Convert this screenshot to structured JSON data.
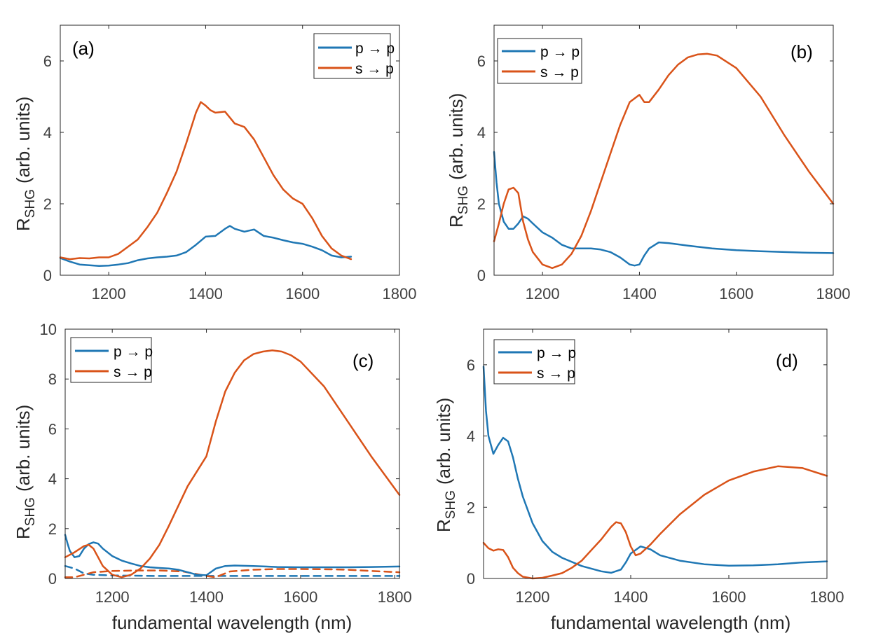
{
  "colors": {
    "p_to_p": "#1f77b4",
    "s_to_p": "#d95319",
    "axis": "#262626",
    "tick_text": "#404040"
  },
  "chart_data": [
    {
      "type": "line",
      "panel_label": "(a)",
      "ylabel_main": "R",
      "ylabel_sub": "SHG",
      "ylabel_units": "(arb. units)",
      "xlabel": "",
      "xlim": [
        1100,
        1800
      ],
      "ylim": [
        0,
        7
      ],
      "xticks": [
        1200,
        1400,
        1600,
        1800
      ],
      "yticks": [
        0,
        2,
        4,
        6
      ],
      "legend": {
        "placement": "top-right",
        "entries": [
          "p → p",
          "s → p"
        ]
      },
      "series": [
        {
          "name": "p → p",
          "color_key": "p_to_p",
          "dash": false,
          "x": [
            1100,
            1120,
            1140,
            1160,
            1180,
            1200,
            1220,
            1240,
            1260,
            1280,
            1300,
            1320,
            1340,
            1360,
            1380,
            1400,
            1420,
            1440,
            1450,
            1460,
            1480,
            1500,
            1520,
            1540,
            1560,
            1580,
            1600,
            1620,
            1640,
            1660,
            1680,
            1700
          ],
          "y": [
            0.48,
            0.38,
            0.3,
            0.28,
            0.26,
            0.27,
            0.3,
            0.34,
            0.42,
            0.47,
            0.5,
            0.52,
            0.55,
            0.65,
            0.85,
            1.08,
            1.1,
            1.3,
            1.38,
            1.3,
            1.22,
            1.28,
            1.1,
            1.05,
            0.98,
            0.92,
            0.88,
            0.8,
            0.7,
            0.55,
            0.5,
            0.52
          ]
        },
        {
          "name": "s → p",
          "color_key": "s_to_p",
          "dash": false,
          "x": [
            1100,
            1120,
            1140,
            1160,
            1180,
            1200,
            1220,
            1240,
            1260,
            1280,
            1300,
            1320,
            1340,
            1360,
            1380,
            1390,
            1400,
            1410,
            1420,
            1440,
            1460,
            1480,
            1500,
            1520,
            1540,
            1560,
            1580,
            1600,
            1620,
            1640,
            1660,
            1680,
            1700
          ],
          "y": [
            0.5,
            0.45,
            0.48,
            0.47,
            0.5,
            0.5,
            0.6,
            0.8,
            1.0,
            1.35,
            1.75,
            2.3,
            2.9,
            3.7,
            4.55,
            4.85,
            4.75,
            4.62,
            4.55,
            4.58,
            4.25,
            4.15,
            3.8,
            3.3,
            2.8,
            2.4,
            2.15,
            2.0,
            1.6,
            1.1,
            0.75,
            0.55,
            0.45
          ]
        }
      ]
    },
    {
      "type": "line",
      "panel_label": "(b)",
      "ylabel_main": "R",
      "ylabel_sub": "SHG",
      "ylabel_units": "(arb. units)",
      "xlabel": "",
      "xlim": [
        1100,
        1800
      ],
      "ylim": [
        0,
        7
      ],
      "xticks": [
        1200,
        1400,
        1600,
        1800
      ],
      "yticks": [
        0,
        2,
        4,
        6
      ],
      "legend": {
        "placement": "top-left",
        "entries": [
          "p → p",
          "s → p"
        ]
      },
      "series": [
        {
          "name": "p → p",
          "color_key": "p_to_p",
          "dash": false,
          "x": [
            1100,
            1105,
            1110,
            1120,
            1130,
            1140,
            1150,
            1160,
            1170,
            1180,
            1200,
            1220,
            1240,
            1260,
            1280,
            1300,
            1320,
            1340,
            1360,
            1380,
            1390,
            1400,
            1410,
            1420,
            1440,
            1460,
            1500,
            1550,
            1600,
            1650,
            1700,
            1750,
            1800
          ],
          "y": [
            3.45,
            2.6,
            2.0,
            1.5,
            1.3,
            1.3,
            1.45,
            1.65,
            1.58,
            1.45,
            1.2,
            1.05,
            0.85,
            0.75,
            0.75,
            0.75,
            0.72,
            0.65,
            0.5,
            0.3,
            0.27,
            0.3,
            0.55,
            0.75,
            0.92,
            0.9,
            0.83,
            0.75,
            0.7,
            0.67,
            0.65,
            0.63,
            0.62
          ]
        },
        {
          "name": "s → p",
          "color_key": "s_to_p",
          "dash": false,
          "x": [
            1100,
            1110,
            1120,
            1130,
            1140,
            1150,
            1160,
            1170,
            1180,
            1200,
            1220,
            1240,
            1260,
            1280,
            1300,
            1320,
            1340,
            1360,
            1380,
            1400,
            1410,
            1420,
            1440,
            1460,
            1480,
            1500,
            1520,
            1540,
            1560,
            1600,
            1650,
            1700,
            1750,
            1800
          ],
          "y": [
            0.95,
            1.45,
            2.0,
            2.4,
            2.45,
            2.3,
            1.5,
            1.0,
            0.65,
            0.3,
            0.2,
            0.3,
            0.6,
            1.1,
            1.8,
            2.6,
            3.4,
            4.2,
            4.85,
            5.05,
            4.85,
            4.85,
            5.2,
            5.6,
            5.9,
            6.1,
            6.18,
            6.2,
            6.15,
            5.8,
            5.0,
            3.9,
            2.9,
            2.0
          ]
        }
      ]
    },
    {
      "type": "line",
      "panel_label": "(c)",
      "ylabel_main": "R",
      "ylabel_sub": "SHG",
      "ylabel_units": "(arb. units)",
      "xlabel": "fundamental wavelength (nm)",
      "xlim": [
        1100,
        1810
      ],
      "ylim": [
        0,
        10
      ],
      "xticks": [
        1200,
        1400,
        1600,
        1800
      ],
      "yticks": [
        0,
        2,
        4,
        6,
        8,
        10
      ],
      "legend": {
        "placement": "top-left",
        "entries": [
          "p → p",
          "s → p"
        ]
      },
      "series": [
        {
          "name": "p → p",
          "color_key": "p_to_p",
          "dash": false,
          "x": [
            1100,
            1105,
            1110,
            1120,
            1130,
            1140,
            1150,
            1160,
            1170,
            1180,
            1200,
            1220,
            1240,
            1260,
            1280,
            1300,
            1320,
            1340,
            1360,
            1380,
            1400,
            1420,
            1440,
            1460,
            1500,
            1550,
            1600,
            1650,
            1700,
            1750,
            1810
          ],
          "y": [
            1.75,
            1.4,
            1.1,
            0.85,
            0.9,
            1.2,
            1.38,
            1.45,
            1.4,
            1.2,
            0.9,
            0.72,
            0.6,
            0.5,
            0.45,
            0.42,
            0.4,
            0.35,
            0.25,
            0.15,
            0.13,
            0.4,
            0.5,
            0.52,
            0.5,
            0.46,
            0.45,
            0.45,
            0.45,
            0.46,
            0.48
          ]
        },
        {
          "name": "s → p",
          "color_key": "s_to_p",
          "dash": false,
          "x": [
            1100,
            1120,
            1140,
            1150,
            1160,
            1170,
            1180,
            1200,
            1220,
            1240,
            1260,
            1280,
            1300,
            1320,
            1340,
            1360,
            1380,
            1400,
            1420,
            1440,
            1460,
            1480,
            1500,
            1520,
            1540,
            1560,
            1580,
            1600,
            1650,
            1700,
            1750,
            1810
          ],
          "y": [
            0.85,
            1.05,
            1.3,
            1.35,
            1.2,
            0.85,
            0.5,
            0.15,
            0.05,
            0.15,
            0.4,
            0.8,
            1.35,
            2.1,
            2.9,
            3.7,
            4.3,
            4.9,
            6.3,
            7.5,
            8.25,
            8.75,
            9.0,
            9.1,
            9.15,
            9.1,
            8.95,
            8.7,
            7.7,
            6.3,
            4.9,
            3.35
          ]
        },
        {
          "name": "p → p dashed",
          "color_key": "p_to_p",
          "dash": true,
          "x": [
            1100,
            1120,
            1140,
            1160,
            1200,
            1300,
            1400,
            1500,
            1600,
            1700,
            1810
          ],
          "y": [
            0.5,
            0.4,
            0.2,
            0.15,
            0.12,
            0.1,
            0.1,
            0.1,
            0.1,
            0.1,
            0.1
          ]
        },
        {
          "name": "s → p dashed",
          "color_key": "s_to_p",
          "dash": true,
          "x": [
            1100,
            1120,
            1140,
            1160,
            1200,
            1250,
            1300,
            1350,
            1400,
            1420,
            1450,
            1500,
            1550,
            1600,
            1650,
            1700,
            1750,
            1810
          ],
          "y": [
            0.05,
            0.05,
            0.15,
            0.25,
            0.3,
            0.32,
            0.32,
            0.28,
            0.1,
            0.05,
            0.28,
            0.35,
            0.38,
            0.38,
            0.37,
            0.35,
            0.3,
            0.25
          ]
        }
      ]
    },
    {
      "type": "line",
      "panel_label": "(d)",
      "ylabel_main": "R",
      "ylabel_sub": "SHG",
      "ylabel_units": "(arb. units)",
      "xlabel": "fundamental wavelength (nm)",
      "xlim": [
        1100,
        1800
      ],
      "ylim": [
        0,
        7
      ],
      "xticks": [
        1200,
        1400,
        1600,
        1800
      ],
      "yticks": [
        0,
        2,
        4,
        6
      ],
      "legend": {
        "placement": "top-left",
        "entries": [
          "p → p",
          "s → p"
        ]
      },
      "series": [
        {
          "name": "p → p",
          "color_key": "p_to_p",
          "dash": false,
          "x": [
            1100,
            1105,
            1110,
            1120,
            1130,
            1140,
            1150,
            1160,
            1170,
            1180,
            1200,
            1220,
            1240,
            1260,
            1300,
            1340,
            1360,
            1380,
            1390,
            1400,
            1420,
            1440,
            1460,
            1500,
            1550,
            1600,
            1650,
            1700,
            1750,
            1800
          ],
          "y": [
            5.95,
            4.7,
            4.0,
            3.5,
            3.75,
            3.95,
            3.85,
            3.4,
            2.8,
            2.3,
            1.55,
            1.05,
            0.75,
            0.58,
            0.35,
            0.2,
            0.16,
            0.25,
            0.45,
            0.7,
            0.9,
            0.82,
            0.65,
            0.5,
            0.4,
            0.36,
            0.37,
            0.4,
            0.45,
            0.48
          ]
        },
        {
          "name": "s → p",
          "color_key": "s_to_p",
          "dash": false,
          "x": [
            1100,
            1110,
            1120,
            1130,
            1140,
            1150,
            1160,
            1170,
            1180,
            1200,
            1220,
            1240,
            1260,
            1280,
            1300,
            1320,
            1340,
            1360,
            1370,
            1380,
            1390,
            1400,
            1410,
            1420,
            1440,
            1460,
            1500,
            1550,
            1600,
            1650,
            1700,
            1750,
            1800
          ],
          "y": [
            1.0,
            0.85,
            0.78,
            0.82,
            0.8,
            0.6,
            0.3,
            0.15,
            0.05,
            0.0,
            0.02,
            0.08,
            0.15,
            0.3,
            0.5,
            0.8,
            1.1,
            1.45,
            1.58,
            1.55,
            1.3,
            0.9,
            0.65,
            0.7,
            0.95,
            1.25,
            1.8,
            2.35,
            2.75,
            3.0,
            3.15,
            3.1,
            2.88
          ]
        }
      ]
    }
  ]
}
